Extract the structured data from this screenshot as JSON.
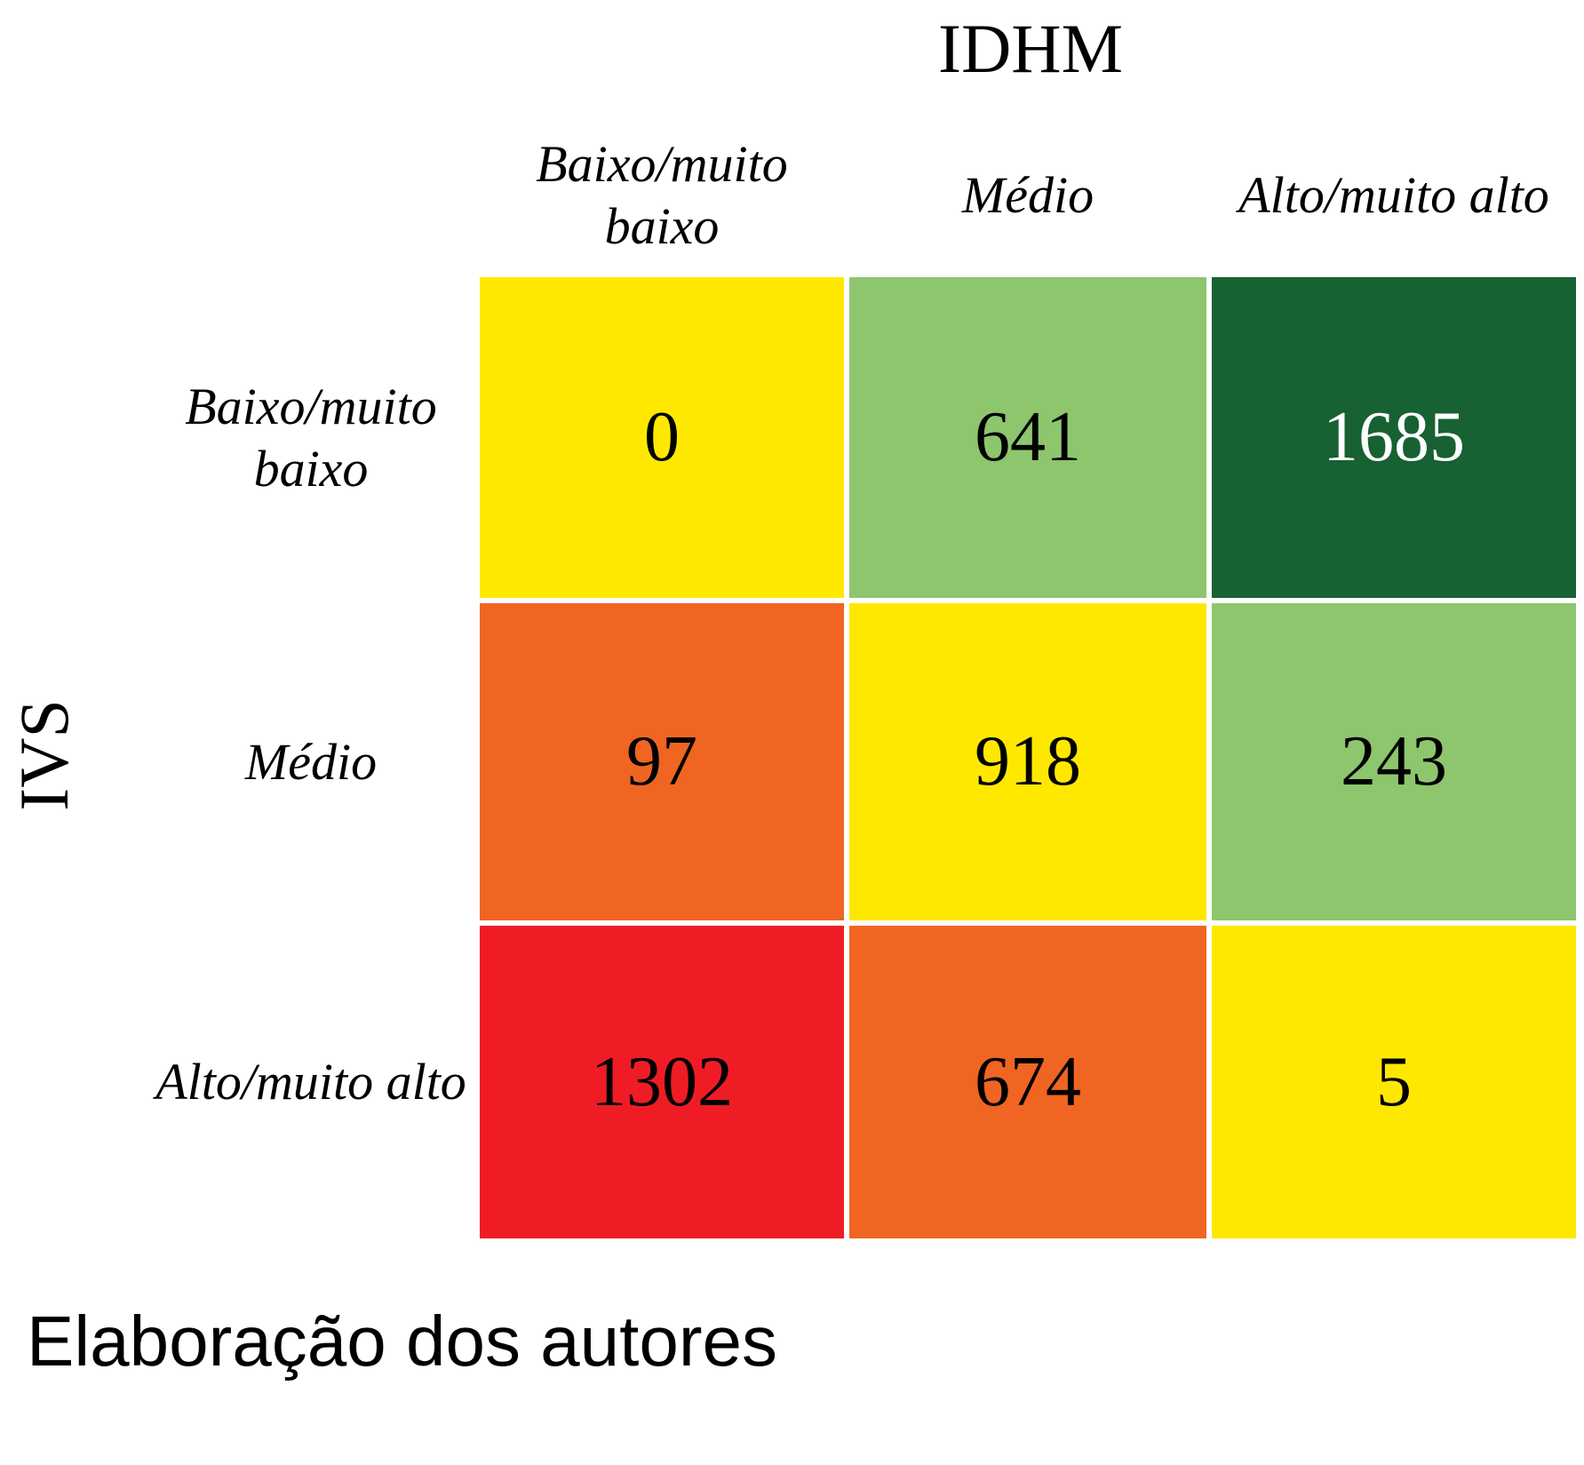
{
  "chart_data": {
    "type": "heatmap",
    "title": "",
    "xlabel": "IDHM",
    "ylabel": "IVS",
    "x_categories": [
      "Baixo/muito baixo",
      "Médio",
      "Alto/muito alto"
    ],
    "y_categories": [
      "Baixo/muito baixo",
      "Médio",
      "Alto/muito alto"
    ],
    "values": [
      [
        0,
        641,
        1685
      ],
      [
        97,
        918,
        243
      ],
      [
        1302,
        674,
        5
      ]
    ],
    "cell_colors": [
      [
        "#FFE800",
        "#8DC66D",
        "#176133"
      ],
      [
        "#F06522",
        "#FFE800",
        "#8DC66D"
      ],
      [
        "#EF1C25",
        "#F06522",
        "#FFE800"
      ]
    ],
    "text_colors": [
      [
        "#000000",
        "#000000",
        "#FFFFFF"
      ],
      [
        "#000000",
        "#000000",
        "#000000"
      ],
      [
        "#000000",
        "#000000",
        "#000000"
      ]
    ],
    "legend": "none",
    "grid": false
  },
  "source_note": "Elaboração dos autores"
}
